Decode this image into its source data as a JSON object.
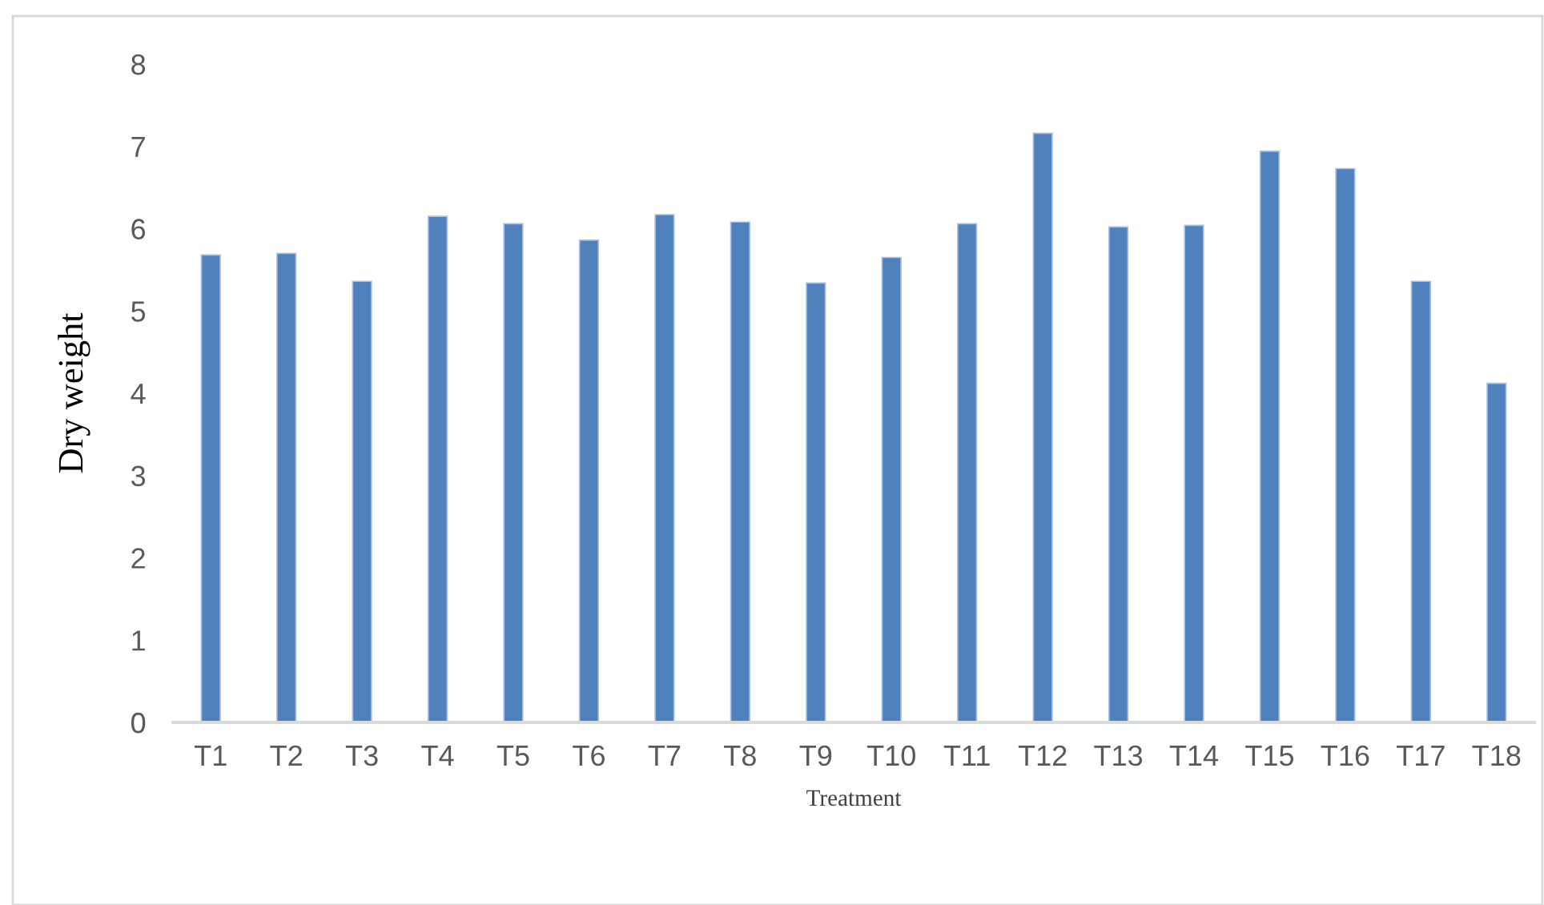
{
  "chart_data": {
    "type": "bar",
    "xlabel": "Treatment",
    "ylabel": "Dry weight",
    "categories": [
      "T1",
      "T2",
      "T3",
      "T4",
      "T5",
      "T6",
      "T7",
      "T8",
      "T9",
      "T10",
      "T11",
      "T12",
      "T13",
      "T14",
      "T15",
      "T16",
      "T17",
      "T18"
    ],
    "values": [
      5.68,
      5.7,
      5.36,
      6.15,
      6.06,
      5.86,
      6.17,
      6.08,
      5.34,
      5.65,
      6.06,
      7.16,
      6.02,
      6.04,
      6.94,
      6.73,
      5.36,
      4.12
    ],
    "color": "#4f81bd",
    "ylim": [
      0,
      8
    ],
    "yticks": [
      0,
      1,
      2,
      3,
      4,
      5,
      6,
      7,
      8
    ],
    "grid": false,
    "legend": false
  }
}
